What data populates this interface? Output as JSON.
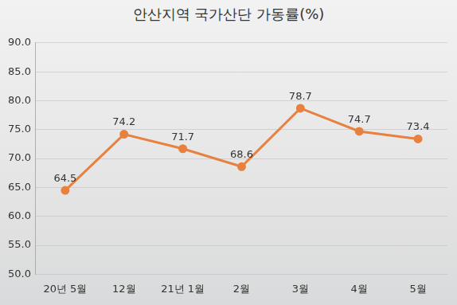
{
  "chart_data": {
    "type": "line",
    "title": "안산지역 국가산단 가동률(%)",
    "categories": [
      "20년 5월",
      "12월",
      "21년 1월",
      "2월",
      "3월",
      "4월",
      "5월"
    ],
    "values": [
      64.5,
      74.2,
      71.7,
      68.6,
      78.7,
      74.7,
      73.4
    ],
    "color": "#e8803f",
    "ylim": [
      50,
      90
    ],
    "yticks": [
      {
        "value": 50,
        "label": "50.0"
      },
      {
        "value": 55,
        "label": "55.0"
      },
      {
        "value": 60,
        "label": "60.0"
      },
      {
        "value": 65,
        "label": "65.0"
      },
      {
        "value": 70,
        "label": "70.0"
      },
      {
        "value": 75,
        "label": "75.0"
      },
      {
        "value": 80,
        "label": "80.0"
      },
      {
        "value": 85,
        "label": "85.0"
      },
      {
        "value": 90,
        "label": "90.0"
      }
    ],
    "grid": true,
    "data_labels": true,
    "marker": "circle"
  }
}
